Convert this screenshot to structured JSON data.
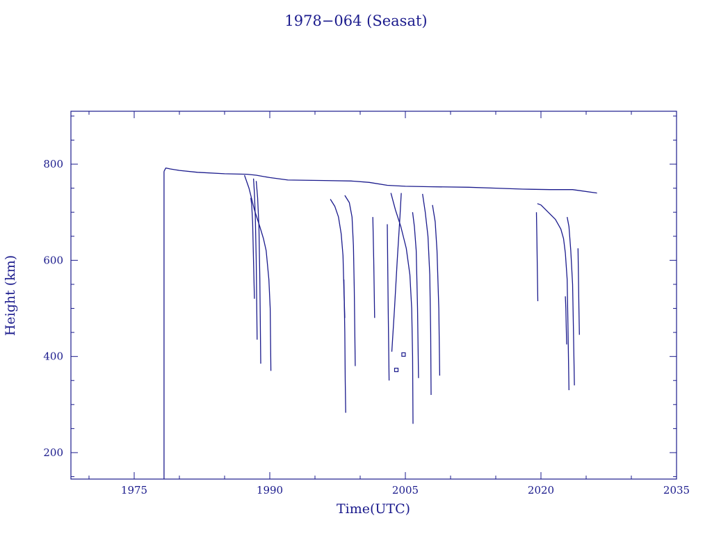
{
  "chart_data": {
    "type": "line",
    "title": "1978−064 (Seasat)",
    "xlabel": "Time(UTC)",
    "ylabel": "Height (km)",
    "xlim": [
      1968,
      2035
    ],
    "ylim": [
      145,
      910
    ],
    "x_ticks": [
      1975,
      1990,
      2005,
      2020,
      2035
    ],
    "y_ticks": [
      200,
      400,
      600,
      800
    ],
    "color": "#1a1a8c",
    "grid": false,
    "series": [
      {
        "x": [
          1978.3,
          1978.3
        ],
        "y": [
          145,
          785
        ]
      },
      {
        "x": [
          1978.3,
          1978.5,
          1979,
          1980,
          1982,
          1985,
          1987.5,
          1988.5,
          1990,
          1992,
          1996,
          1999,
          2001,
          2003,
          2005,
          2008,
          2012,
          2015,
          2018,
          2021,
          2023.5,
          2026.2
        ],
        "y": [
          785,
          792,
          790,
          787,
          783,
          780,
          779,
          777,
          772,
          767,
          766,
          765,
          762,
          756,
          754,
          753,
          752,
          750,
          748,
          747,
          747,
          740
        ]
      },
      {
        "x": [
          1987.2,
          1987.7,
          1988.3,
          1988.9,
          1989.3,
          1989.6,
          1989.9,
          1990.05,
          1990.12
        ],
        "y": [
          777,
          750,
          705,
          670,
          645,
          620,
          560,
          500,
          370
        ]
      },
      {
        "x": [
          1987.9,
          1988.0,
          1988.1,
          1988.2,
          1988.3
        ],
        "y": [
          730,
          715,
          680,
          600,
          520
        ]
      },
      {
        "x": [
          1988.2,
          1988.3,
          1988.4,
          1988.5,
          1988.6
        ],
        "y": [
          770,
          740,
          690,
          600,
          435
        ]
      },
      {
        "x": [
          1988.5,
          1988.65,
          1988.8,
          1988.9,
          1989.0
        ],
        "y": [
          765,
          730,
          670,
          560,
          385
        ]
      },
      {
        "x": [
          1996.7,
          1997.2,
          1997.6,
          1997.9,
          1998.1,
          1998.2,
          1998.3
        ],
        "y": [
          727,
          712,
          690,
          655,
          610,
          540,
          480
        ]
      },
      {
        "x": [
          1998.2,
          1998.3,
          1998.35,
          1998.4
        ],
        "y": [
          560,
          450,
          350,
          283
        ]
      },
      {
        "x": [
          1998.3,
          1998.8,
          1999.1,
          1999.25,
          1999.35,
          1999.45
        ],
        "y": [
          735,
          720,
          690,
          630,
          540,
          380
        ]
      },
      {
        "x": [
          2001.4,
          2001.5,
          2001.6
        ],
        "y": [
          690,
          600,
          480
        ]
      },
      {
        "x": [
          2003.5,
          2003.8,
          2004.1,
          2004.4,
          2004.55
        ],
        "y": [
          410,
          500,
          600,
          690,
          740
        ]
      },
      {
        "x": [
          2003.0,
          2003.1,
          2003.2
        ],
        "y": [
          675,
          500,
          350
        ]
      },
      {
        "x": [
          2003.4,
          2003.9,
          2004.5,
          2005.1,
          2005.5,
          2005.7,
          2005.8,
          2005.85
        ],
        "y": [
          740,
          705,
          670,
          625,
          570,
          500,
          400,
          260
        ]
      },
      {
        "x": [
          2005.8,
          2006.0,
          2006.2,
          2006.35,
          2006.45
        ],
        "y": [
          700,
          670,
          620,
          500,
          355
        ]
      },
      {
        "x": [
          2006.9,
          2007.2,
          2007.5,
          2007.7,
          2007.8,
          2007.85
        ],
        "y": [
          738,
          700,
          650,
          570,
          450,
          320
        ]
      },
      {
        "x": [
          2008.0,
          2008.3,
          2008.5,
          2008.7,
          2008.8
        ],
        "y": [
          715,
          680,
          620,
          500,
          360
        ]
      },
      {
        "x": [
          2019.5,
          2019.55,
          2019.6,
          2019.65
        ],
        "y": [
          700,
          650,
          580,
          515
        ]
      },
      {
        "x": [
          2019.6,
          2020.0,
          2020.8,
          2021.6,
          2022.2,
          2022.5,
          2022.7,
          2022.9,
          2023.0,
          2023.1
        ],
        "y": [
          718,
          715,
          700,
          685,
          665,
          645,
          615,
          560,
          450,
          330
        ]
      },
      {
        "x": [
          2022.9,
          2023.1,
          2023.3,
          2023.5,
          2023.6,
          2023.7
        ],
        "y": [
          690,
          670,
          620,
          550,
          450,
          340
        ]
      },
      {
        "x": [
          2022.7,
          2022.75,
          2022.8,
          2022.85
        ],
        "y": [
          525,
          500,
          460,
          425
        ]
      },
      {
        "x": [
          2024.1,
          2024.15,
          2024.2,
          2024.25
        ],
        "y": [
          625,
          560,
          500,
          445
        ]
      }
    ],
    "points": [
      {
        "x": 2004.0,
        "y": 372
      },
      {
        "x": 2004.8,
        "y": 404
      }
    ]
  }
}
